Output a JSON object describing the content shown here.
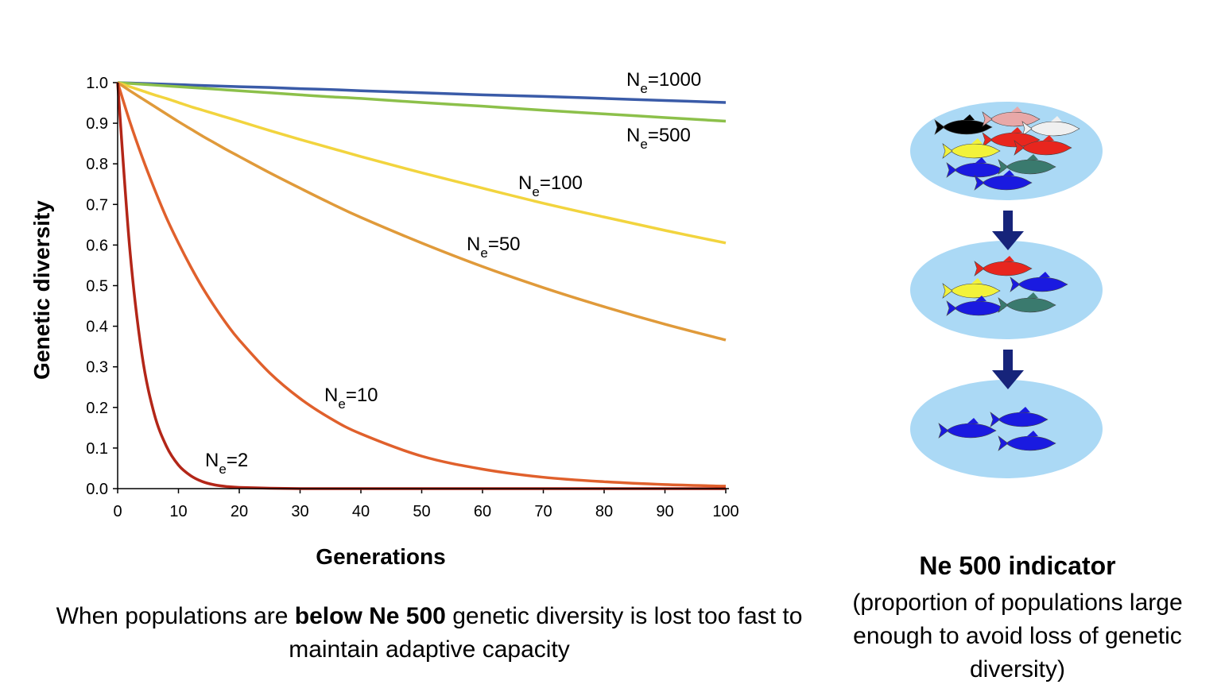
{
  "chart_data": {
    "type": "line",
    "xlabel": "Generations",
    "ylabel": "Genetic diversity",
    "xlim": [
      0,
      100
    ],
    "ylim": [
      0,
      1
    ],
    "xticks": [
      0,
      10,
      20,
      30,
      40,
      50,
      60,
      70,
      80,
      90,
      100
    ],
    "yticks": [
      0.0,
      0.1,
      0.2,
      0.3,
      0.4,
      0.5,
      0.6,
      0.7,
      0.8,
      0.9,
      1.0
    ],
    "grid": false,
    "x": [
      0,
      2,
      4,
      6,
      8,
      10,
      12,
      14,
      16,
      18,
      20,
      25,
      30,
      35,
      40,
      50,
      60,
      70,
      80,
      90,
      100
    ],
    "series": [
      {
        "name_prefix": "N",
        "name_sub": "e",
        "name_suffix": "=1000",
        "color": "#3a5ba8",
        "values": [
          1.0,
          0.999,
          0.998,
          0.997,
          0.996,
          0.995,
          0.994,
          0.993,
          0.992,
          0.991,
          0.99,
          0.988,
          0.985,
          0.983,
          0.98,
          0.975,
          0.97,
          0.966,
          0.961,
          0.956,
          0.951
        ]
      },
      {
        "name_prefix": "N",
        "name_sub": "e",
        "name_suffix": "=500",
        "color": "#8cc04a",
        "values": [
          1.0,
          0.998,
          0.996,
          0.994,
          0.992,
          0.99,
          0.988,
          0.986,
          0.984,
          0.982,
          0.98,
          0.975,
          0.97,
          0.965,
          0.961,
          0.951,
          0.942,
          0.932,
          0.923,
          0.914,
          0.905
        ]
      },
      {
        "name_prefix": "N",
        "name_sub": "e",
        "name_suffix": "=100",
        "color": "#f2d43e",
        "values": [
          1.0,
          0.99,
          0.98,
          0.97,
          0.961,
          0.951,
          0.941,
          0.932,
          0.923,
          0.914,
          0.905,
          0.882,
          0.86,
          0.839,
          0.818,
          0.778,
          0.74,
          0.703,
          0.669,
          0.636,
          0.605
        ]
      },
      {
        "name_prefix": "N",
        "name_sub": "e",
        "name_suffix": "=50",
        "color": "#e09a3a",
        "values": [
          1.0,
          0.98,
          0.961,
          0.942,
          0.923,
          0.904,
          0.886,
          0.868,
          0.851,
          0.834,
          0.818,
          0.778,
          0.74,
          0.703,
          0.668,
          0.605,
          0.547,
          0.495,
          0.448,
          0.405,
          0.366
        ]
      },
      {
        "name_prefix": "N",
        "name_sub": "e",
        "name_suffix": "=10",
        "color": "#e0602c",
        "values": [
          1.0,
          0.904,
          0.818,
          0.74,
          0.668,
          0.605,
          0.547,
          0.494,
          0.447,
          0.404,
          0.366,
          0.285,
          0.222,
          0.173,
          0.135,
          0.08,
          0.048,
          0.028,
          0.017,
          0.01,
          0.006
        ]
      },
      {
        "name_prefix": "N",
        "name_sub": "e",
        "name_suffix": "=2",
        "color": "#b32618",
        "values": [
          1.0,
          0.59,
          0.33,
          0.185,
          0.105,
          0.058,
          0.032,
          0.017,
          0.009,
          0.005,
          0.003,
          0.001,
          0.0,
          0.0,
          0.0,
          0.0,
          0.0,
          0.0,
          0.0,
          0.0,
          0.0
        ]
      }
    ]
  },
  "caption": {
    "part1": "When populations are ",
    "bold": "below Ne 500",
    "part2": " genetic diversity is lost too fast to maintain adaptive capacity"
  },
  "indicator": {
    "title": "Ne 500 indicator",
    "description": "(proportion of populations large enough to avoid loss of genetic diversity)"
  },
  "diagram": {
    "population_color": "#abd9f5",
    "arrow_color": "#16247a",
    "populations": [
      {
        "fish_colors": [
          "#000000",
          "#e8a8a8",
          "#f0f0f0",
          "#e8261e",
          "#f2f23a",
          "#e8261e",
          "#1a1ae0",
          "#3a7a6e",
          "#1a1ae0"
        ]
      },
      {
        "fish_colors": [
          "#e8261e",
          "#f2f23a",
          "#1a1ae0",
          "#1a1ae0",
          "#3a7a6e"
        ]
      },
      {
        "fish_colors": [
          "#1a1ae0",
          "#1a1ae0",
          "#1a1ae0"
        ]
      }
    ]
  }
}
